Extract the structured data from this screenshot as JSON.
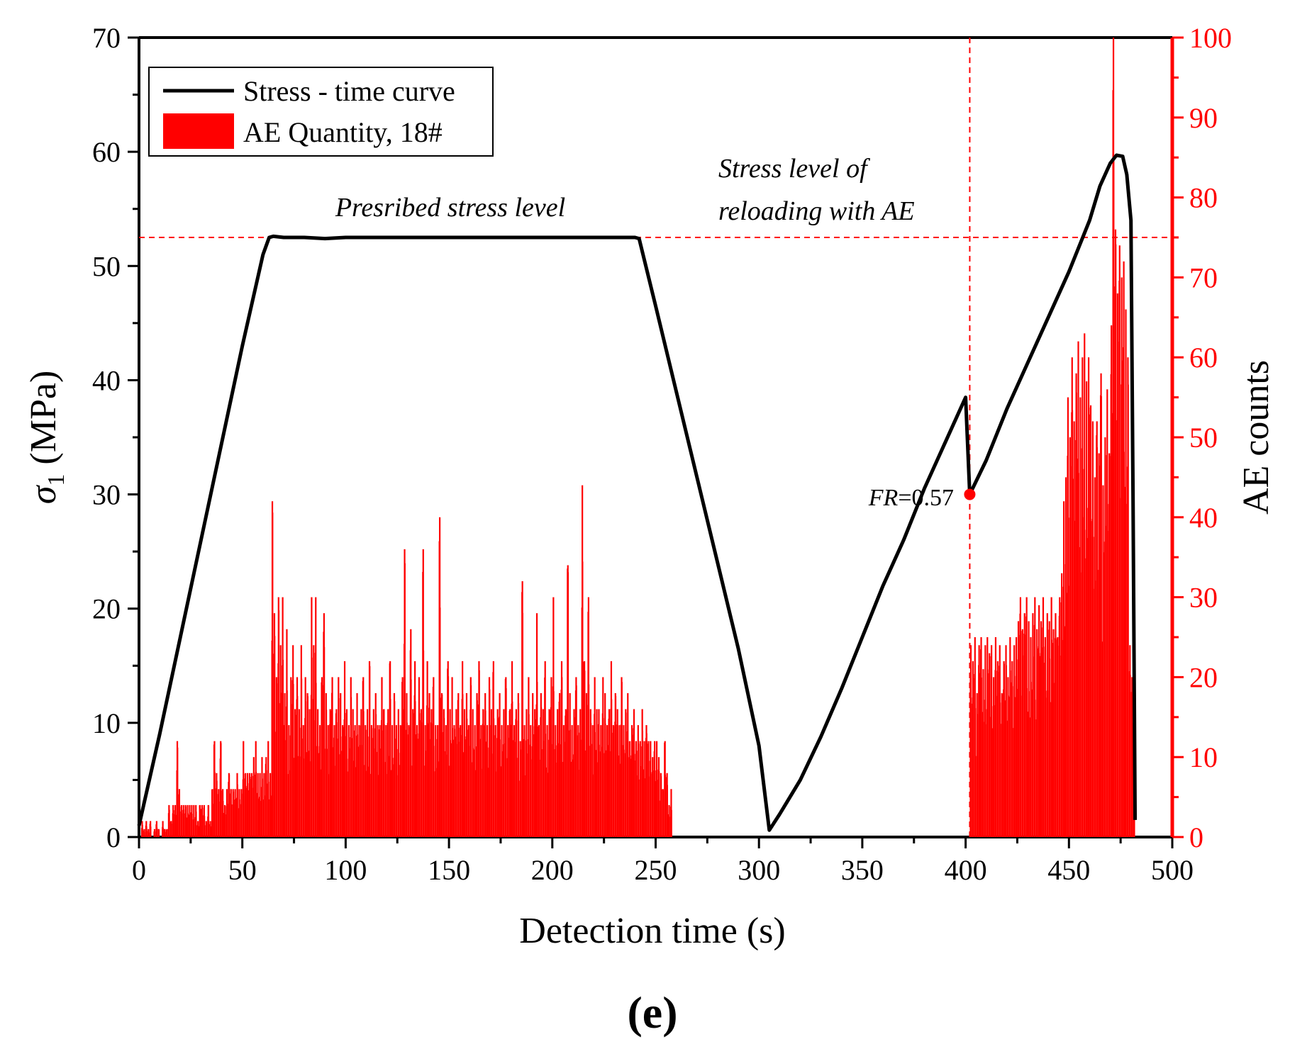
{
  "chart_data": {
    "type": "bar+line",
    "panel_label": "(e)",
    "x_axis": {
      "label": "Detection time (s)",
      "lim": [
        0,
        500
      ],
      "ticks": [
        0,
        50,
        100,
        150,
        200,
        250,
        300,
        350,
        400,
        450,
        500
      ]
    },
    "y_left": {
      "label_symbol": "σ",
      "label_sub": "1",
      "label_unit": " (MPa)",
      "lim": [
        0,
        70
      ],
      "ticks": [
        0,
        10,
        20,
        30,
        40,
        50,
        60,
        70
      ]
    },
    "y_right": {
      "label": "AE counts",
      "lim": [
        0,
        100
      ],
      "ticks": [
        0,
        10,
        20,
        30,
        40,
        50,
        60,
        70,
        80,
        90,
        100
      ],
      "color": "#ff0000"
    },
    "legend": [
      {
        "label": "Stress - time curve",
        "kind": "line",
        "color": "#000000"
      },
      {
        "label": "AE Quantity, 18#",
        "kind": "patch",
        "color": "#ff0000"
      }
    ],
    "series": [
      {
        "name": "Stress - time curve",
        "axis": "left",
        "kind": "line",
        "color": "#000000",
        "x": [
          0,
          10,
          20,
          30,
          40,
          50,
          60,
          63,
          65,
          70,
          80,
          90,
          100,
          150,
          200,
          240,
          242,
          250,
          260,
          270,
          280,
          290,
          300,
          305,
          310,
          320,
          330,
          340,
          350,
          360,
          370,
          380,
          390,
          400,
          402,
          410,
          420,
          430,
          440,
          450,
          460,
          465,
          470,
          473,
          476,
          478,
          480,
          481,
          482
        ],
        "y": [
          1.0,
          9.0,
          17.5,
          26.0,
          34.5,
          43.0,
          51.0,
          52.5,
          52.6,
          52.5,
          52.5,
          52.4,
          52.5,
          52.5,
          52.5,
          52.5,
          52.4,
          46.5,
          39.0,
          31.5,
          24.0,
          16.5,
          8.0,
          0.6,
          2.0,
          5.0,
          8.8,
          13.0,
          17.5,
          22.0,
          26.0,
          30.5,
          34.5,
          38.5,
          30.0,
          33.0,
          37.5,
          41.5,
          45.5,
          49.5,
          54.0,
          57.0,
          59.0,
          59.7,
          59.6,
          58.0,
          54.0,
          30.0,
          1.5
        ]
      },
      {
        "name": "AE Quantity, 18#",
        "axis": "right",
        "kind": "bar",
        "color": "#ff0000",
        "bin_width": 0.5,
        "segments": [
          {
            "from": 1,
            "to": 14,
            "values": [
              2,
              1,
              2,
              1,
              2,
              0,
              1,
              2,
              1,
              0,
              2,
              1,
              1
            ]
          },
          {
            "from": 14,
            "to": 34,
            "values": [
              4,
              2,
              4,
              4,
              12,
              6,
              4,
              4,
              4,
              4,
              4,
              4,
              4,
              4,
              2,
              4,
              4,
              4,
              2,
              4
            ]
          },
          {
            "from": 34,
            "to": 64,
            "values": [
              2,
              6,
              12,
              8,
              6,
              12,
              6,
              4,
              6,
              8,
              6,
              6,
              6,
              8,
              6,
              6,
              12,
              8,
              8,
              8,
              8,
              10,
              12,
              8,
              8,
              10,
              8,
              10,
              12,
              8
            ]
          },
          {
            "from": 64,
            "to": 120,
            "values": [
              42,
              28,
              20,
              30,
              24,
              30,
              18,
              26,
              14,
              20,
              24,
              16,
              20,
              16,
              24,
              14,
              20,
              18,
              16,
              30,
              24,
              30,
              16,
              14,
              20,
              28,
              18,
              14,
              16,
              20,
              14,
              16,
              20,
              18,
              14,
              22,
              16,
              14,
              20,
              16,
              14,
              18,
              14,
              16,
              20,
              14,
              16,
              22,
              14,
              16,
              18,
              14,
              14,
              20,
              16,
              14
            ]
          },
          {
            "from": 120,
            "to": 180,
            "values": [
              16,
              22,
              14,
              18,
              14,
              16,
              14,
              20,
              36,
              18,
              14,
              26,
              16,
              22,
              14,
              20,
              16,
              36,
              14,
              22,
              18,
              16,
              20,
              14,
              14,
              40,
              18,
              16,
              14,
              22,
              16,
              20,
              14,
              16,
              18,
              14,
              22,
              16,
              18,
              14,
              20,
              16,
              14,
              18,
              22,
              14,
              16,
              18,
              14,
              20,
              16,
              22,
              14,
              16,
              18,
              14,
              16,
              20,
              14,
              16
            ]
          },
          {
            "from": 180,
            "to": 222,
            "values": [
              22,
              14,
              16,
              18,
              12,
              32,
              14,
              16,
              20,
              14,
              18,
              16,
              28,
              14,
              18,
              16,
              22,
              14,
              16,
              20,
              30,
              14,
              16,
              18,
              22,
              14,
              16,
              34,
              18,
              14,
              16,
              20,
              14,
              16,
              44,
              22,
              18,
              30,
              16,
              14,
              20,
              16
            ]
          },
          {
            "from": 222,
            "to": 258,
            "values": [
              16,
              14,
              20,
              18,
              14,
              16,
              22,
              14,
              18,
              16,
              14,
              20,
              14,
              16,
              18,
              12,
              14,
              16,
              12,
              14,
              12,
              16,
              12,
              14,
              12,
              12,
              10,
              12,
              12,
              10,
              8,
              6,
              12,
              8,
              4,
              6
            ]
          },
          {
            "from": 402,
            "to": 424,
            "values": [
              24,
              22,
              25,
              18,
              24,
              25,
              21,
              24,
              25,
              23,
              24,
              20,
              25,
              22,
              24,
              18,
              22,
              24,
              20,
              25,
              22,
              24
            ]
          },
          {
            "from": 424,
            "to": 447,
            "values": [
              25,
              27,
              30,
              26,
              28,
              30,
              27,
              25,
              28,
              30,
              26,
              29,
              27,
              30,
              25,
              28,
              27,
              30,
              26,
              28,
              25,
              30,
              33
            ]
          },
          {
            "from": 447,
            "to": 462,
            "values": [
              42,
              45,
              55,
              50,
              60,
              52,
              58,
              62,
              55,
              60,
              63,
              57,
              60,
              54,
              52
            ]
          },
          {
            "from": 462,
            "to": 482,
            "values": [
              45,
              52,
              48,
              58,
              44,
              50,
              56,
              48,
              64,
              100,
              76,
              68,
              74,
              70,
              72,
              66,
              60,
              24,
              20,
              18
            ]
          }
        ]
      }
    ],
    "reference_lines": [
      {
        "kind": "hline",
        "axis": "left",
        "value": 52.5,
        "color": "#ff0000",
        "style": "dashed"
      },
      {
        "kind": "vline",
        "value": 402,
        "color": "#ff0000",
        "style": "dashed"
      }
    ],
    "annotations": [
      {
        "text": "Presribed stress level",
        "style": "italic"
      },
      {
        "text_lines": [
          "Stress level of",
          "reloading with AE"
        ],
        "style": "italic"
      },
      {
        "text_fr": "FR",
        "text_value": "=0.57",
        "point": {
          "x": 402,
          "y": 30
        },
        "marker_color": "#ff0000"
      }
    ]
  }
}
